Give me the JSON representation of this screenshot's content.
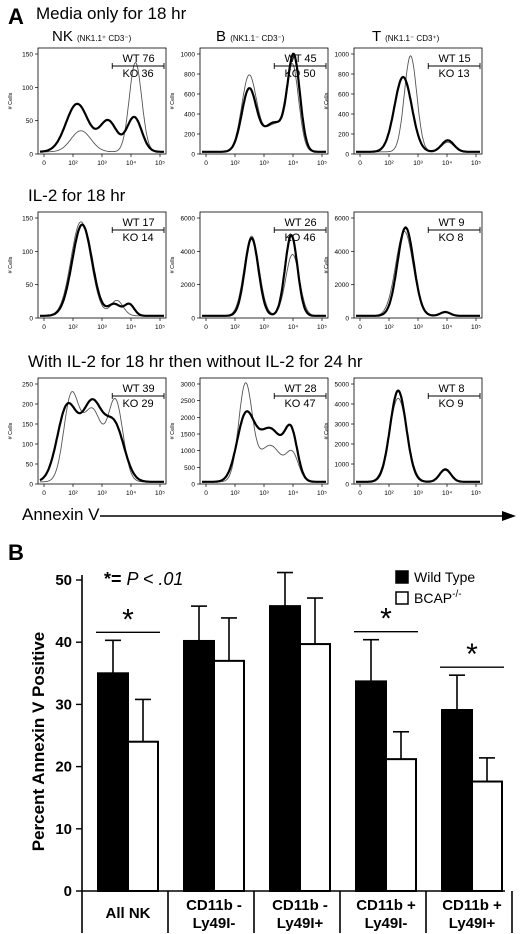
{
  "panel_a": {
    "letter": "A",
    "conditions": [
      "Media only for 18 hr",
      "IL-2 for 18 hr",
      "With IL-2 for 18 hr then without IL-2 for 24 hr"
    ],
    "columns": [
      {
        "name": "NK",
        "subtitle": "(NK1.1⁺ CD3⁻)"
      },
      {
        "name": "B",
        "subtitle": "(NK1.1⁻ CD3⁻)"
      },
      {
        "name": "T",
        "subtitle": "(NK1.1⁻ CD3⁺)"
      }
    ],
    "y_axis_label": "# Cells",
    "x_tick_labels": [
      "0",
      "10²",
      "10³",
      "10⁴",
      "10⁵"
    ],
    "x_axis_label": "Annexin V",
    "panels": [
      {
        "row": 0,
        "col": 0,
        "yticks": [
          0,
          50,
          100,
          150
        ],
        "wt": "WT 76",
        "ko": "KO 36",
        "key": "NK-media"
      },
      {
        "row": 0,
        "col": 1,
        "yticks": [
          0,
          200,
          400,
          600,
          800,
          1000
        ],
        "wt": "WT 45",
        "ko": "KO 50",
        "key": "B-media"
      },
      {
        "row": 0,
        "col": 2,
        "yticks": [
          0,
          200,
          400,
          600,
          800,
          1000
        ],
        "wt": "WT 15",
        "ko": "KO 13",
        "key": "T-media"
      },
      {
        "row": 1,
        "col": 0,
        "yticks": [
          0,
          50,
          100,
          150
        ],
        "wt": "WT 17",
        "ko": "KO 14",
        "key": "NK-IL2"
      },
      {
        "row": 1,
        "col": 1,
        "yticks": [
          0,
          2000,
          4000,
          6000
        ],
        "wt": "WT 26",
        "ko": "KO 46",
        "key": "B-IL2"
      },
      {
        "row": 1,
        "col": 2,
        "yticks": [
          0,
          2000,
          4000,
          6000
        ],
        "wt": "WT 9",
        "ko": "KO 8",
        "key": "T-IL2"
      },
      {
        "row": 2,
        "col": 0,
        "yticks": [
          0,
          50,
          100,
          150,
          200,
          250
        ],
        "wt": "WT 39",
        "ko": "KO 29",
        "key": "NK-withdraw"
      },
      {
        "row": 2,
        "col": 1,
        "yticks": [
          0,
          500,
          1000,
          1500,
          2000,
          2500,
          3000
        ],
        "wt": "WT 28",
        "ko": "KO 47",
        "key": "B-withdraw"
      },
      {
        "row": 2,
        "col": 2,
        "yticks": [
          0,
          1000,
          2000,
          3000,
          4000,
          5000
        ],
        "wt": "WT 8",
        "ko": "KO 9",
        "key": "T-withdraw"
      }
    ]
  },
  "chart_data": {
    "type": "bar",
    "panel_letter": "B",
    "annotation": "P < .01",
    "annotation_prefix": "*= ",
    "ylabel": "Percent Annexin V Positive",
    "ylim": [
      0,
      50
    ],
    "yticks": [
      0,
      10,
      20,
      30,
      40,
      50
    ],
    "categories": [
      [
        "All NK"
      ],
      [
        "CD11b -",
        "Ly49I-"
      ],
      [
        "CD11b -",
        "Ly49I+"
      ],
      [
        "CD11b +",
        "Ly49I-"
      ],
      [
        "CD11b +",
        "Ly49I+"
      ]
    ],
    "series": [
      {
        "name": "Wild Type",
        "color": "#000000",
        "values": [
          35,
          40.2,
          45.8,
          33.7,
          29.1
        ],
        "errors": [
          5.3,
          5.6,
          5.4,
          6.7,
          5.6
        ]
      },
      {
        "name": "BCAP",
        "name_superscript": "-/-",
        "color": "#ffffff",
        "values": [
          24,
          37,
          39.7,
          21.2,
          17.6
        ],
        "errors": [
          6.8,
          6.9,
          7.4,
          4.4,
          3.8
        ]
      }
    ],
    "significant": [
      true,
      false,
      false,
      true,
      true
    ],
    "significance_mark": "*",
    "legend_position": "top-right"
  }
}
